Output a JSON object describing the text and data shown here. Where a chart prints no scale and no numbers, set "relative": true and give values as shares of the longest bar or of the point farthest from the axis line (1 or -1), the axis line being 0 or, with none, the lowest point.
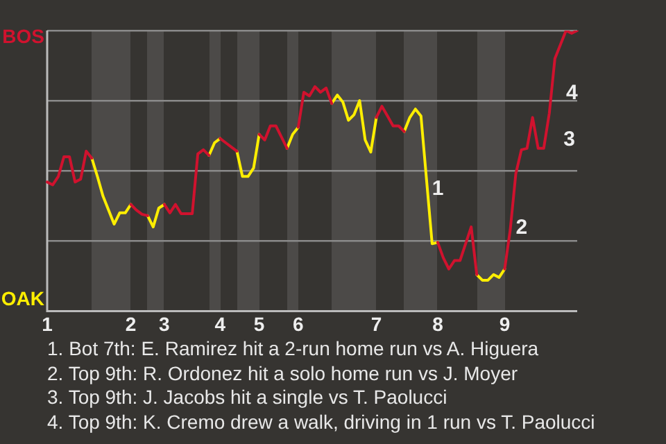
{
  "chart_data": {
    "type": "line",
    "relative": true,
    "categories": [
      "1",
      null,
      null,
      null,
      null,
      null,
      null,
      null,
      null,
      null,
      null,
      null,
      null,
      null,
      null,
      "2",
      null,
      null,
      null,
      null,
      null,
      "3",
      null,
      null,
      null,
      null,
      null,
      null,
      null,
      null,
      null,
      "4",
      null,
      null,
      null,
      null,
      null,
      null,
      "5",
      null,
      null,
      null,
      null,
      null,
      null,
      "6",
      null,
      null,
      null,
      null,
      null,
      null,
      null,
      null,
      null,
      null,
      null,
      null,
      null,
      "7",
      null,
      null,
      null,
      null,
      null,
      null,
      null,
      null,
      null,
      null,
      "8",
      null,
      null,
      null,
      null,
      null,
      null,
      null,
      null,
      null,
      null,
      null,
      "9",
      null,
      null,
      null,
      null,
      null,
      null,
      null,
      null,
      null,
      null,
      null,
      null,
      null
    ],
    "series": [
      {
        "name": "BOS",
        "color": "#d0122e",
        "values": [
          0.46,
          0.45,
          0.48,
          0.55,
          0.55,
          0.46,
          0.47,
          0.57,
          0.545,
          null,
          null,
          null,
          null,
          null,
          null,
          0.38,
          0.36,
          0.345,
          0.34,
          null,
          null,
          0.38,
          0.35,
          0.38,
          0.347,
          0.347,
          0.347,
          0.56,
          0.575,
          0.555,
          null,
          0.615,
          0.6,
          0.585,
          0.57,
          null,
          null,
          null,
          0.63,
          0.61,
          0.66,
          0.66,
          0.62,
          0.58,
          null,
          0.655,
          0.78,
          0.767,
          0.8,
          0.78,
          0.795,
          0.74,
          null,
          null,
          null,
          null,
          null,
          null,
          null,
          0.69,
          0.73,
          0.695,
          0.66,
          0.66,
          0.64,
          null,
          null,
          null,
          null,
          null,
          0.245,
          0.19,
          0.15,
          0.18,
          0.18,
          0.24,
          0.3,
          0.13,
          null,
          null,
          null,
          null,
          0.15,
          0.29,
          0.49,
          0.575,
          0.58,
          0.69,
          0.58,
          0.58,
          0.705,
          0.9,
          0.95,
          1,
          0.99,
          1
        ]
      },
      {
        "name": "OAK",
        "color": "#ffee00",
        "values": [
          null,
          null,
          null,
          null,
          null,
          null,
          null,
          null,
          0.545,
          0.48,
          0.41,
          0.36,
          0.31,
          0.35,
          0.35,
          0.38,
          null,
          null,
          0.34,
          0.3,
          0.367,
          0.38,
          null,
          null,
          null,
          null,
          null,
          null,
          null,
          0.555,
          0.6,
          0.615,
          null,
          null,
          0.57,
          0.48,
          0.48,
          0.51,
          0.63,
          null,
          null,
          null,
          null,
          0.58,
          0.63,
          0.655,
          null,
          null,
          null,
          null,
          null,
          0.74,
          0.77,
          0.745,
          0.68,
          0.7,
          0.75,
          0.61,
          0.567,
          0.69,
          null,
          null,
          null,
          null,
          0.64,
          0.69,
          0.72,
          0.695,
          0.467,
          0.24,
          0.245,
          null,
          null,
          null,
          null,
          null,
          null,
          0.13,
          0.11,
          0.11,
          0.13,
          0.12,
          0.15,
          null,
          null,
          null,
          null,
          null,
          null,
          null,
          null,
          null,
          null,
          null,
          null,
          null
        ]
      }
    ],
    "grid": "y",
    "marker": "none",
    "line_style": "solid",
    "annotations": [
      "1",
      "2",
      "3",
      "4",
      "1. Bot 7th: E. Ramirez hit a 2-run home run vs A. Higuera",
      "2. Top 9th: R. Ordonez hit a solo home run vs J. Moyer",
      "3. Top 9th: J. Jacobs hit a single vs T. Paolucci",
      "4. Top 9th: K. Cremo drew a walk, driving in 1 run vs T. Paolucci"
    ]
  }
}
